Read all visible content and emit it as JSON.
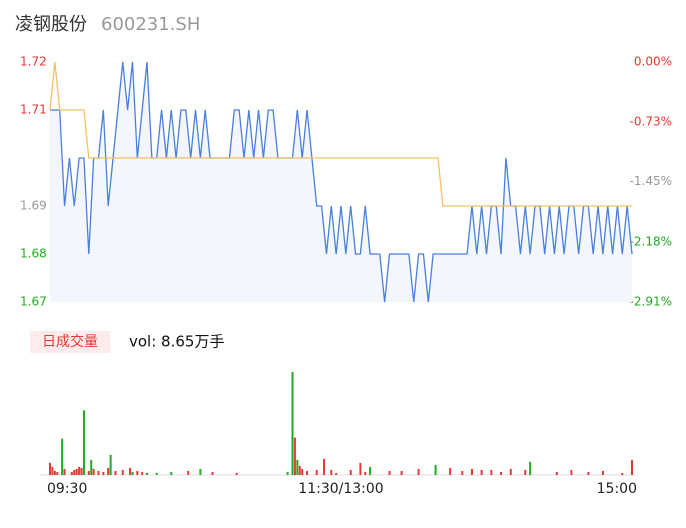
{
  "header": {
    "name": "凌钢股份",
    "code": "600231.SH"
  },
  "chart_data": [
    {
      "type": "line",
      "xlim": [
        0,
        240
      ],
      "ylim": [
        1.67,
        1.72
      ],
      "yticks": [
        1.72,
        1.71,
        1.69,
        1.68,
        1.67
      ],
      "ytick_colors": [
        "#e53935",
        "#e53935",
        "#999999",
        "#22aa22",
        "#22aa22"
      ],
      "y2lim": [
        -2.91,
        0
      ],
      "y2ticks": [
        {
          "value": 0,
          "label": "0.00%"
        },
        {
          "value": -0.73,
          "label": "-0.73%"
        },
        {
          "value": -1.45,
          "label": "-1.45%"
        },
        {
          "value": -2.18,
          "label": "-2.18%"
        },
        {
          "value": -2.91,
          "label": "-2.91%"
        }
      ],
      "series": [
        {
          "color": "#4a7fe0",
          "values": [
            1.71,
            1.71,
            1.71,
            1.69,
            1.7,
            1.69,
            1.7,
            1.7,
            1.68,
            1.7,
            1.7,
            1.71,
            1.69,
            1.7,
            1.71,
            1.72,
            1.71,
            1.72,
            1.7,
            1.71,
            1.72,
            1.7,
            1.7,
            1.71,
            1.7,
            1.71,
            1.7,
            1.71,
            1.71,
            1.7,
            1.71,
            1.7,
            1.71,
            1.7,
            1.7,
            1.7,
            1.7,
            1.7,
            1.71,
            1.71,
            1.7,
            1.71,
            1.7,
            1.71,
            1.7,
            1.71,
            1.71,
            1.7,
            1.7,
            1.7,
            1.7,
            1.71,
            1.7,
            1.71,
            1.7,
            1.69,
            1.69,
            1.68,
            1.69,
            1.68,
            1.69,
            1.68,
            1.69,
            1.68,
            1.68,
            1.69,
            1.68,
            1.68,
            1.68,
            1.67,
            1.68,
            1.68,
            1.68,
            1.68,
            1.68,
            1.67,
            1.68,
            1.68,
            1.67,
            1.68,
            1.68,
            1.68,
            1.68,
            1.68,
            1.68,
            1.68,
            1.68,
            1.69,
            1.68,
            1.69,
            1.68,
            1.69,
            1.69,
            1.68,
            1.7,
            1.69,
            1.69,
            1.68,
            1.69,
            1.68,
            1.69,
            1.69,
            1.68,
            1.69,
            1.68,
            1.69,
            1.68,
            1.69,
            1.69,
            1.68,
            1.69,
            1.69,
            1.68,
            1.69,
            1.68,
            1.69,
            1.68,
            1.69,
            1.68,
            1.69,
            1.68
          ]
        },
        {
          "color": "#f5c060",
          "values": [
            1.71,
            1.72,
            1.71,
            1.71,
            1.71,
            1.71,
            1.71,
            1.71,
            1.7,
            1.7,
            1.7,
            1.7,
            1.7,
            1.7,
            1.7,
            1.7,
            1.7,
            1.7,
            1.7,
            1.7,
            1.7,
            1.7,
            1.7,
            1.7,
            1.7,
            1.7,
            1.7,
            1.7,
            1.7,
            1.7,
            1.7,
            1.7,
            1.7,
            1.7,
            1.7,
            1.7,
            1.7,
            1.7,
            1.7,
            1.7,
            1.7,
            1.7,
            1.7,
            1.7,
            1.7,
            1.7,
            1.7,
            1.7,
            1.7,
            1.7,
            1.7,
            1.7,
            1.7,
            1.7,
            1.7,
            1.7,
            1.7,
            1.7,
            1.7,
            1.7,
            1.7,
            1.7,
            1.7,
            1.7,
            1.7,
            1.7,
            1.7,
            1.7,
            1.7,
            1.7,
            1.7,
            1.7,
            1.7,
            1.7,
            1.7,
            1.7,
            1.7,
            1.7,
            1.7,
            1.7,
            1.7,
            1.69,
            1.69,
            1.69,
            1.69,
            1.69,
            1.69,
            1.69,
            1.69,
            1.69,
            1.69,
            1.69,
            1.69,
            1.69,
            1.69,
            1.69,
            1.69,
            1.69,
            1.69,
            1.69,
            1.69,
            1.69,
            1.69,
            1.69,
            1.69,
            1.69,
            1.69,
            1.69,
            1.69,
            1.69,
            1.69,
            1.69,
            1.69,
            1.69,
            1.69,
            1.69,
            1.69,
            1.69,
            1.69,
            1.69,
            1.69
          ]
        }
      ]
    },
    {
      "type": "bar",
      "label": "日成交量",
      "summary": "vol: 8.65万手",
      "xlim": [
        0,
        240
      ],
      "xticks": [
        {
          "value": 0,
          "label": "09:30"
        },
        {
          "value": 120,
          "label": "11:30/13:00"
        },
        {
          "value": 240,
          "label": "15:00"
        }
      ],
      "ylim": [
        0,
        1020
      ],
      "x": [
        0,
        1,
        2,
        3,
        5,
        6,
        9,
        10,
        11,
        12,
        13,
        14,
        16,
        17,
        18,
        20,
        22,
        24,
        25,
        27,
        30,
        33,
        34,
        36,
        38,
        40,
        44,
        50,
        57,
        62,
        67,
        77,
        98,
        100,
        101,
        102,
        103,
        104,
        106,
        110,
        113,
        116,
        118,
        124,
        128,
        130,
        132,
        140,
        145,
        152,
        159,
        165,
        170,
        174,
        178,
        182,
        186,
        190,
        196,
        198,
        209,
        215,
        222,
        228,
        236,
        240
      ],
      "values": [
        120,
        80,
        40,
        30,
        360,
        60,
        30,
        50,
        60,
        80,
        70,
        640,
        40,
        150,
        60,
        40,
        30,
        70,
        200,
        40,
        50,
        70,
        30,
        40,
        30,
        20,
        20,
        30,
        40,
        60,
        30,
        20,
        30,
        1020,
        370,
        150,
        90,
        60,
        40,
        50,
        160,
        50,
        20,
        50,
        120,
        30,
        80,
        40,
        40,
        60,
        100,
        70,
        40,
        60,
        50,
        50,
        30,
        60,
        50,
        130,
        30,
        50,
        30,
        40,
        20,
        150
      ],
      "colors": [
        "#e53935",
        "#e53935",
        "#e53935",
        "#e53935",
        "#22aa22",
        "#e53935",
        "#e53935",
        "#e53935",
        "#e53935",
        "#e53935",
        "#e53935",
        "#22aa22",
        "#e53935",
        "#22aa22",
        "#e53935",
        "#e53935",
        "#e53935",
        "#e53935",
        "#22aa22",
        "#e53935",
        "#e53935",
        "#e53935",
        "#22aa22",
        "#e53935",
        "#e53935",
        "#22aa22",
        "#22aa22",
        "#22aa22",
        "#e53935",
        "#22aa22",
        "#e53935",
        "#e53935",
        "#22aa22",
        "#22aa22",
        "#e53935",
        "#22aa22",
        "#e53935",
        "#e53935",
        "#e53935",
        "#e53935",
        "#e53935",
        "#e53935",
        "#e53935",
        "#e53935",
        "#e53935",
        "#e53935",
        "#22aa22",
        "#e53935",
        "#e53935",
        "#e53935",
        "#22aa22",
        "#e53935",
        "#e53935",
        "#e53935",
        "#e53935",
        "#e53935",
        "#e53935",
        "#e53935",
        "#e53935",
        "#22aa22",
        "#e53935",
        "#e53935",
        "#e53935",
        "#e53935",
        "#e53935",
        "#e53935"
      ]
    }
  ]
}
